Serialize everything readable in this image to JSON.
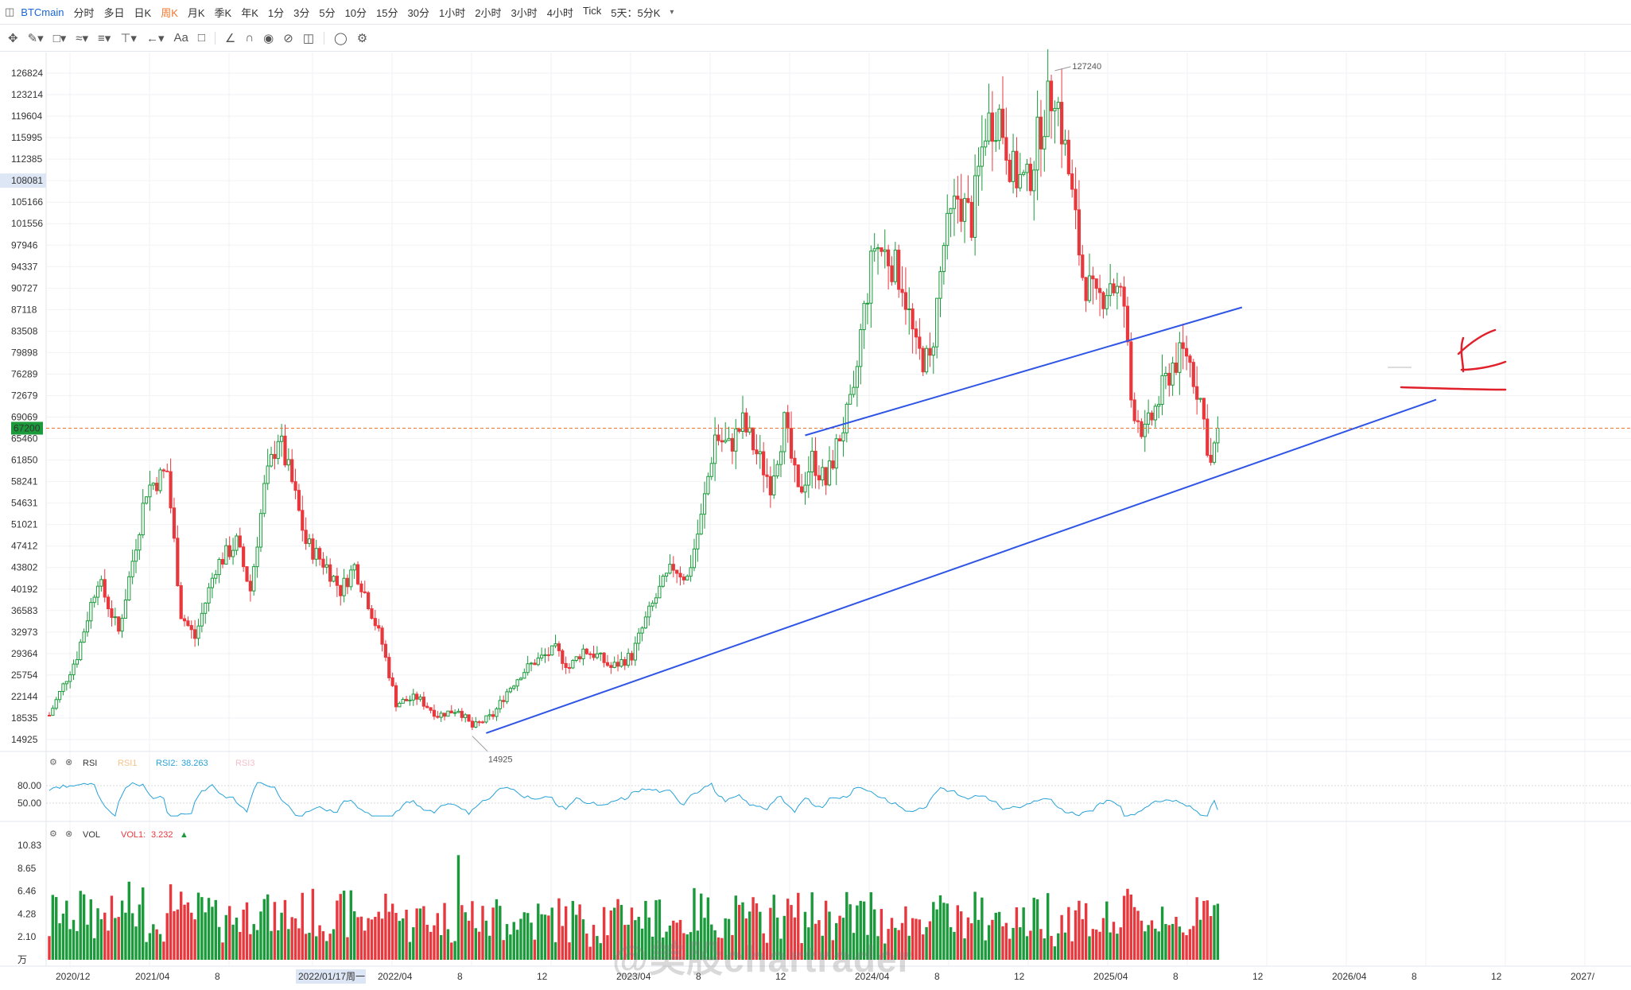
{
  "toolbar": {
    "symbol": "BTCmain",
    "periods": [
      "分时",
      "多日",
      "日K",
      "周K",
      "月K",
      "季K",
      "年K",
      "1分",
      "3分",
      "5分",
      "10分",
      "15分",
      "30分",
      "1小时",
      "2小时",
      "3小时",
      "4小时",
      "Tick",
      "5天：5分K"
    ],
    "active_period": "周K"
  },
  "drawing_tools": [
    "move-icon",
    "pen-icon",
    "rectangle-icon",
    "pattern-icon",
    "fib-icon",
    "measure-icon",
    "arrow-icon",
    "text-icon",
    "note-icon",
    "eraser-icon",
    "magnet-icon",
    "eye-icon",
    "lock-icon",
    "trash-icon",
    "hide-icon",
    "settings-icon"
  ],
  "text_tool_label": "Aa",
  "colors": {
    "up": "#1a9a3a",
    "down": "#e8383d",
    "trendline": "#2f55e6",
    "rsi": "#27a2d6",
    "hline": "#f0762d",
    "annotation": "#e0202a"
  },
  "price_axis": {
    "ticks": [
      "126824",
      "123214",
      "119604",
      "115995",
      "112385",
      "108081",
      "105166",
      "101556",
      "97946",
      "94337",
      "90727",
      "87118",
      "83508",
      "79898",
      "76289",
      "72679",
      "69069",
      "65460",
      "61850",
      "58241",
      "54631",
      "51021",
      "47412",
      "43802",
      "40192",
      "36583",
      "32973",
      "29364",
      "25754",
      "22144",
      "18535",
      "14925"
    ],
    "highlight_label": "108081",
    "current_price_label": "67200",
    "high_label": "127240",
    "low_label": "14925"
  },
  "time_axis": {
    "labels": [
      "2020/12",
      "2021/04",
      "8",
      "2022/01/17周一",
      "2022/04",
      "8",
      "12",
      "2023/04",
      "8",
      "12",
      "2024/04",
      "8",
      "12",
      "2025/04",
      "8",
      "12",
      "2026/04",
      "8",
      "12",
      "2027/"
    ]
  },
  "rsi_panel": {
    "name": "RSI",
    "rsi1": "RSI1",
    "rsi2_label": "RSI2:",
    "rsi2_value": "38.263",
    "rsi3": "RSI3",
    "levels": [
      "80.00",
      "50.00"
    ]
  },
  "vol_panel": {
    "name": "VOL",
    "vol1_label": "VOL1:",
    "vol1_value": "3.232",
    "ticks": [
      "10.83",
      "8.65",
      "6.46",
      "4.28",
      "2.10",
      "万"
    ]
  },
  "watermark": "@美股chartrader",
  "chart_data": {
    "type": "candlestick",
    "interval": "周K",
    "price_range": [
      14925,
      127240
    ],
    "weekly_price_path": [
      [
        0,
        19000
      ],
      [
        8,
        29000
      ],
      [
        14,
        42000
      ],
      [
        20,
        33000
      ],
      [
        28,
        57000
      ],
      [
        34,
        60000
      ],
      [
        38,
        36000
      ],
      [
        42,
        32000
      ],
      [
        48,
        44000
      ],
      [
        54,
        48000
      ],
      [
        58,
        40000
      ],
      [
        62,
        57000
      ],
      [
        66,
        66000
      ],
      [
        70,
        58000
      ],
      [
        74,
        48000
      ],
      [
        80,
        44000
      ],
      [
        84,
        40000
      ],
      [
        88,
        44000
      ],
      [
        92,
        38000
      ],
      [
        96,
        31000
      ],
      [
        100,
        21000
      ],
      [
        106,
        22000
      ],
      [
        112,
        19000
      ],
      [
        118,
        20000
      ],
      [
        122,
        17000
      ],
      [
        128,
        19000
      ],
      [
        132,
        23000
      ],
      [
        136,
        26000
      ],
      [
        140,
        28000
      ],
      [
        146,
        30000
      ],
      [
        150,
        27000
      ],
      [
        154,
        30000
      ],
      [
        158,
        29000
      ],
      [
        162,
        27000
      ],
      [
        168,
        29000
      ],
      [
        172,
        35000
      ],
      [
        176,
        40000
      ],
      [
        180,
        44000
      ],
      [
        184,
        42000
      ],
      [
        188,
        52000
      ],
      [
        192,
        66000
      ],
      [
        196,
        64000
      ],
      [
        200,
        68000
      ],
      [
        204,
        63000
      ],
      [
        208,
        58000
      ],
      [
        212,
        68000
      ],
      [
        216,
        56000
      ],
      [
        220,
        62000
      ],
      [
        224,
        58000
      ],
      [
        228,
        66000
      ],
      [
        232,
        72000
      ],
      [
        234,
        83000
      ],
      [
        238,
        98000
      ],
      [
        242,
        96000
      ],
      [
        246,
        92000
      ],
      [
        250,
        80000
      ],
      [
        254,
        78000
      ],
      [
        258,
        98000
      ],
      [
        262,
        106000
      ],
      [
        266,
        102000
      ],
      [
        270,
        118000
      ],
      [
        274,
        120000
      ],
      [
        278,
        110000
      ],
      [
        282,
        108000
      ],
      [
        286,
        118000
      ],
      [
        290,
        125000
      ],
      [
        294,
        110000
      ],
      [
        298,
        93000
      ],
      [
        302,
        88000
      ],
      [
        306,
        92000
      ],
      [
        310,
        88000
      ],
      [
        312,
        72000
      ],
      [
        316,
        66000
      ],
      [
        320,
        72000
      ],
      [
        324,
        78000
      ],
      [
        328,
        80000
      ],
      [
        332,
        72000
      ],
      [
        335,
        61000
      ],
      [
        337,
        67200
      ]
    ],
    "trendlines": [
      {
        "name": "lower-trendline",
        "from": [
          126,
          16000
        ],
        "to": [
          400,
          72000
        ]
      },
      {
        "name": "upper-trendline",
        "from": [
          218,
          66000
        ],
        "to": [
          344,
          87500
        ]
      }
    ],
    "rsi2_last": 38.263,
    "vol1_last": 3.232
  }
}
